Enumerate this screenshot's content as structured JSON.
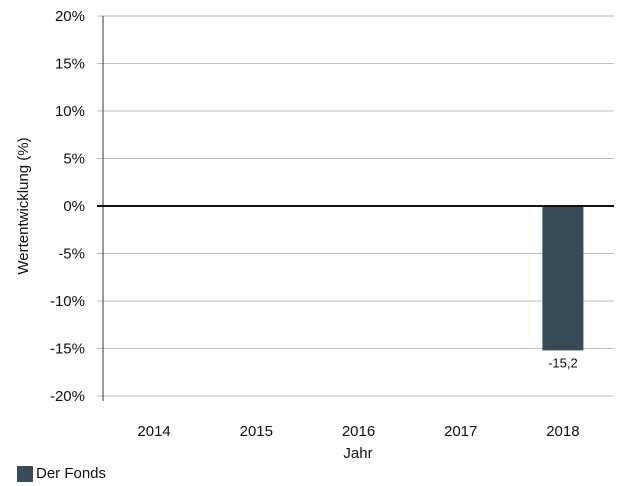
{
  "chart_data": {
    "type": "bar",
    "categories": [
      "2014",
      "2015",
      "2016",
      "2017",
      "2018"
    ],
    "series": [
      {
        "name": "Der Fonds",
        "values": [
          null,
          null,
          null,
          null,
          -15.2
        ],
        "color": "#364a57"
      }
    ],
    "data_labels": [
      "",
      "",
      "",
      "",
      "-15,2"
    ],
    "xlabel": "Jahr",
    "ylabel": "Wertentwicklung (%)",
    "ylim": [
      -20,
      20
    ],
    "yticks": [
      20,
      15,
      10,
      5,
      0,
      -5,
      -10,
      -15,
      -20
    ],
    "ytick_labels": [
      "20%",
      "15%",
      "10%",
      "5%",
      "0%",
      "-5%",
      "-10%",
      "-15%",
      "-20%"
    ],
    "grid": true,
    "legend": "bottom-left"
  }
}
